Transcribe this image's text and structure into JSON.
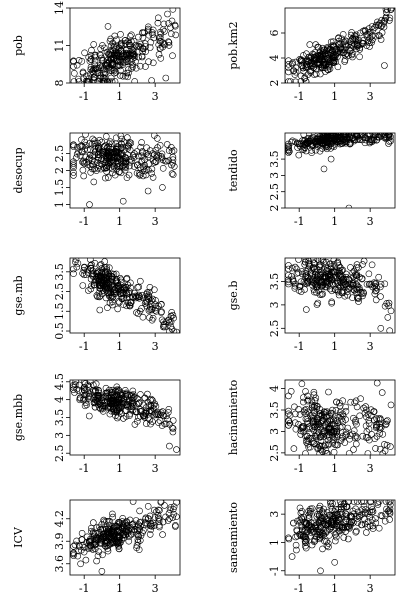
{
  "chart_data": [
    {
      "type": "scatter",
      "ylabel": "pob",
      "xlim": [
        -1.8,
        4.4
      ],
      "ylim": [
        8,
        14
      ],
      "xticks": [
        -1,
        1,
        3
      ],
      "yticks": [
        8,
        11,
        14
      ],
      "trend": [
        [
          -1.6,
          9.0
        ],
        [
          0,
          9.4
        ],
        [
          1.5,
          10.2
        ],
        [
          3,
          11.2
        ],
        [
          4.2,
          12.4
        ]
      ],
      "spread": 0.9,
      "outliers": [
        [
          2.8,
          8.2
        ],
        [
          3.6,
          8.4
        ],
        [
          4.0,
          13.9
        ]
      ]
    },
    {
      "type": "scatter",
      "ylabel": "pob.km2",
      "xlim": [
        -1.8,
        4.4
      ],
      "ylim": [
        2,
        8
      ],
      "xticks": [
        -1,
        1,
        3
      ],
      "yticks": [
        2,
        4,
        6
      ],
      "trend": [
        [
          -1.6,
          2.8
        ],
        [
          0,
          3.8
        ],
        [
          1.5,
          4.6
        ],
        [
          3,
          5.8
        ],
        [
          4.2,
          7.6
        ]
      ],
      "spread": 0.55,
      "outliers": [
        [
          -1.2,
          2.1
        ],
        [
          3.8,
          3.4
        ],
        [
          4.2,
          8.0
        ]
      ]
    },
    {
      "type": "scatter",
      "ylabel": "desocup",
      "xlim": [
        -1.8,
        4.4
      ],
      "ylim": [
        0.9,
        3.1
      ],
      "xticks": [
        -1,
        1,
        3
      ],
      "yticks": [
        1.0,
        1.5,
        2.0,
        2.5
      ],
      "trend": [
        [
          -1.6,
          2.4
        ],
        [
          1,
          2.4
        ],
        [
          4.2,
          2.3
        ]
      ],
      "spread": 0.28,
      "outliers": [
        [
          -0.7,
          1.0
        ],
        [
          1.2,
          1.1
        ],
        [
          2.6,
          1.4
        ]
      ]
    },
    {
      "type": "scatter",
      "ylabel": "tendido",
      "xlim": [
        -1.8,
        4.4
      ],
      "ylim": [
        2.0,
        4.3
      ],
      "xticks": [
        -1,
        1,
        3
      ],
      "yticks": [
        2.0,
        2.5,
        3.0,
        3.5
      ],
      "trend": [
        [
          -1.6,
          3.85
        ],
        [
          0,
          4.05
        ],
        [
          1.5,
          4.15
        ],
        [
          4.2,
          4.2
        ]
      ],
      "spread": 0.12,
      "outliers": [
        [
          0.4,
          3.2
        ],
        [
          0.8,
          3.5
        ],
        [
          1.8,
          2.0
        ]
      ]
    },
    {
      "type": "scatter",
      "ylabel": "gse.mb",
      "xlim": [
        -1.8,
        4.4
      ],
      "ylim": [
        0.4,
        4.2
      ],
      "xticks": [
        -1,
        1,
        3
      ],
      "yticks": [
        0.5,
        1.5,
        2.5,
        3.5
      ],
      "trend": [
        [
          -1.6,
          3.8
        ],
        [
          0,
          3.0
        ],
        [
          1.5,
          2.5
        ],
        [
          3,
          1.6
        ],
        [
          4.2,
          0.6
        ]
      ],
      "spread": 0.45,
      "outliers": [
        [
          -1.5,
          4.0
        ],
        [
          4.2,
          0.45
        ]
      ]
    },
    {
      "type": "scatter",
      "ylabel": "gse.b",
      "xlim": [
        -1.8,
        4.4
      ],
      "ylim": [
        2.4,
        4.0
      ],
      "xticks": [
        -1,
        1,
        3
      ],
      "yticks": [
        2.5,
        3.0,
        3.5
      ],
      "trend": [
        [
          -1.6,
          3.6
        ],
        [
          1,
          3.6
        ],
        [
          3,
          3.4
        ],
        [
          4.2,
          3.0
        ]
      ],
      "spread": 0.2,
      "outliers": [
        [
          -0.6,
          2.9
        ],
        [
          3.6,
          2.5
        ],
        [
          4.1,
          2.45
        ]
      ]
    },
    {
      "type": "scatter",
      "ylabel": "gse.mbb",
      "xlim": [
        -1.8,
        4.4
      ],
      "ylim": [
        2.45,
        4.55
      ],
      "xticks": [
        -1,
        1,
        3
      ],
      "yticks": [
        2.5,
        3.0,
        3.5,
        4.0,
        4.5
      ],
      "trend": [
        [
          -1.6,
          4.3
        ],
        [
          0,
          4.05
        ],
        [
          1.5,
          3.85
        ],
        [
          3,
          3.6
        ],
        [
          4.2,
          3.1
        ]
      ],
      "spread": 0.2,
      "outliers": [
        [
          3.8,
          2.7
        ],
        [
          4.2,
          2.6
        ]
      ]
    },
    {
      "type": "scatter",
      "ylabel": "hacinamiento",
      "xlim": [
        -1.8,
        4.4
      ],
      "ylim": [
        2.45,
        4.2
      ],
      "xticks": [
        -1,
        1,
        3
      ],
      "yticks": [
        2.5,
        3.0,
        3.5,
        4.0
      ],
      "trend": [
        [
          -1.6,
          3.3
        ],
        [
          1,
          3.1
        ],
        [
          4.2,
          3.2
        ]
      ],
      "spread": 0.32,
      "outliers": [
        [
          -1.3,
          2.6
        ],
        [
          3.8,
          2.7
        ]
      ]
    },
    {
      "type": "scatter",
      "ylabel": "ICV",
      "xlim": [
        -1.8,
        4.4
      ],
      "ylim": [
        3.45,
        4.45
      ],
      "xticks": [
        -1,
        1,
        3
      ],
      "yticks": [
        3.6,
        3.9,
        4.2
      ],
      "trend": [
        [
          -1.6,
          3.75
        ],
        [
          0,
          3.95
        ],
        [
          1.5,
          4.05
        ],
        [
          3,
          4.15
        ],
        [
          4.2,
          4.3
        ]
      ],
      "spread": 0.1,
      "outliers": [
        [
          -1.2,
          3.6
        ],
        [
          0,
          3.5
        ],
        [
          4.2,
          4.42
        ]
      ]
    },
    {
      "type": "scatter",
      "ylabel": "saneamiento",
      "xlim": [
        -1.8,
        4.4
      ],
      "ylim": [
        -1.3,
        4.0
      ],
      "xticks": [
        -1,
        1,
        3
      ],
      "yticks": [
        -1,
        1,
        3
      ],
      "trend": [
        [
          -1.6,
          1.6
        ],
        [
          0,
          2.2
        ],
        [
          1.5,
          2.6
        ],
        [
          3,
          3.0
        ],
        [
          4.2,
          3.6
        ]
      ],
      "spread": 0.7,
      "outliers": [
        [
          0.2,
          -1.0
        ],
        [
          1.0,
          -0.4
        ],
        [
          -1.4,
          0.0
        ]
      ]
    }
  ],
  "layout_columns": 2,
  "point_count_per_panel": 300
}
